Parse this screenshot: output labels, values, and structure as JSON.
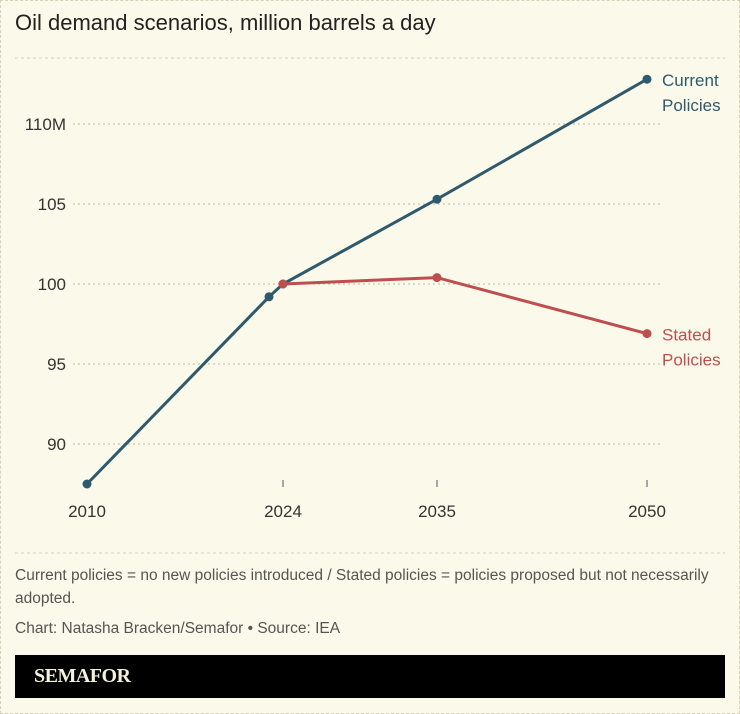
{
  "title": "Oil demand scenarios, million barrels a day",
  "chart_data": {
    "type": "line",
    "title": "Oil demand scenarios, million barrels a day",
    "xlim": [
      2010,
      2050
    ],
    "ylim": [
      87.5,
      113
    ],
    "x_ticks": [
      "2010",
      "2024",
      "2035",
      "2050"
    ],
    "y_ticks": [
      {
        "value": 90,
        "label": "90"
      },
      {
        "value": 95,
        "label": "95"
      },
      {
        "value": 100,
        "label": "100"
      },
      {
        "value": 105,
        "label": "105"
      },
      {
        "value": 110,
        "label": "110M"
      }
    ],
    "grid": true,
    "series": [
      {
        "name": "Current Policies",
        "label_lines": [
          "Current",
          "Policies"
        ],
        "color": "#2f5a6d",
        "points": [
          [
            2010,
            87.5
          ],
          [
            2023,
            99.2
          ],
          [
            2024,
            100
          ],
          [
            2035,
            105.3
          ],
          [
            2050,
            112.8
          ]
        ]
      },
      {
        "name": "Stated Policies",
        "label_lines": [
          "Stated",
          "Policies"
        ],
        "color": "#bf4f4f",
        "points": [
          [
            2024,
            100
          ],
          [
            2035,
            100.4
          ],
          [
            2050,
            96.9
          ]
        ]
      }
    ]
  },
  "note": "Current policies = no new policies introduced / Stated policies = policies proposed but not necessarily adopted.",
  "credit": "Chart: Natasha Bracken/Semafor • Source: IEA",
  "logo": "SEMAFOR"
}
